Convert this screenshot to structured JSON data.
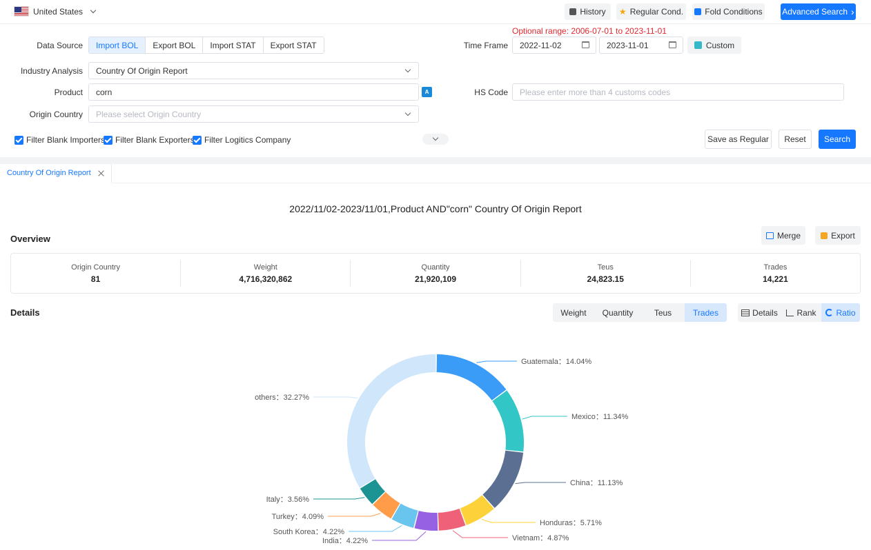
{
  "topbar": {
    "country": "United States",
    "history": "History",
    "regular_cond": "Regular Cond.",
    "fold_conditions": "Fold Conditions",
    "advanced_search": "Advanced Search"
  },
  "form": {
    "data_source_label": "Data Source",
    "data_sources": [
      "Import BOL",
      "Export BOL",
      "Import STAT",
      "Export STAT"
    ],
    "active_data_source": "Import BOL",
    "optional_range": "Optional range:  2006-07-01 to 2023-11-01",
    "time_frame_label": "Time Frame",
    "date_from": "2022-11-02",
    "date_to": "2023-11-01",
    "custom": "Custom",
    "industry_label": "Industry Analysis",
    "industry_value": "Country Of Origin Report",
    "product_label": "Product",
    "product_value": "corn",
    "hs_label": "HS Code",
    "hs_placeholder": "Please enter more than 4 customs codes",
    "origin_label": "Origin Country",
    "origin_placeholder": "Please select Origin Country",
    "filters": [
      "Filter Blank Importers",
      "Filter Blank Exporters",
      "Filter Logitics Company"
    ],
    "save_regular": "Save as Regular",
    "reset": "Reset",
    "search": "Search"
  },
  "tabs": [
    {
      "label": "Country Of Origin Report"
    }
  ],
  "report": {
    "title": "2022/11/02-2023/11/01,Product AND\"corn\" Country Of Origin Report",
    "overview_title": "Overview",
    "merge": "Merge",
    "export": "Export",
    "overview": [
      {
        "label": "Origin Country",
        "value": "81"
      },
      {
        "label": "Weight",
        "value": "4,716,320,862"
      },
      {
        "label": "Quantity",
        "value": "21,920,109"
      },
      {
        "label": "Teus",
        "value": "24,823.15"
      },
      {
        "label": "Trades",
        "value": "14,221"
      }
    ],
    "details_title": "Details",
    "metrics": [
      "Weight",
      "Quantity",
      "Teus",
      "Trades"
    ],
    "active_metric": "Trades",
    "views": [
      "Details",
      "Rank",
      "Ratio"
    ],
    "active_view": "Ratio"
  },
  "chart_data": {
    "type": "pie",
    "style": "donut",
    "categories": [
      "Guatemala",
      "Mexico",
      "China",
      "Honduras",
      "Vietnam",
      "India",
      "South Korea",
      "Turkey",
      "Italy",
      "others"
    ],
    "values": [
      14.04,
      11.34,
      11.13,
      5.71,
      4.87,
      4.22,
      4.22,
      4.09,
      3.56,
      32.27
    ],
    "unit": "%",
    "colors": [
      "#3a9cf7",
      "#33c6c6",
      "#5a6f91",
      "#fdd139",
      "#ef6179",
      "#9761e4",
      "#6ac5ee",
      "#fe9c4a",
      "#1c9493",
      "#fd8fc7",
      "#cfe6fb"
    ]
  }
}
